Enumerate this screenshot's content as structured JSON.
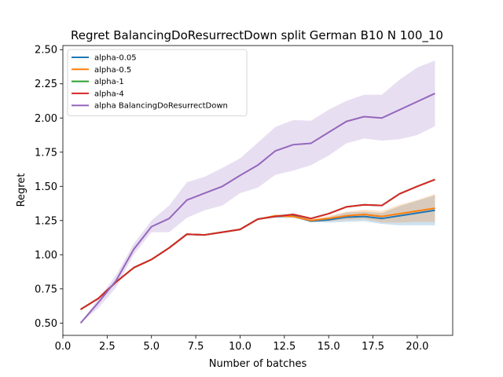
{
  "chart_data": {
    "type": "line",
    "title": "Regret BalancingDoResurrectDown split German B10 N 100_10",
    "xlabel": "Number of batches",
    "ylabel": "Regret",
    "xlim": [
      0.0,
      22.0
    ],
    "ylim": [
      0.41,
      2.53
    ],
    "xticks": [
      0.0,
      2.5,
      5.0,
      7.5,
      10.0,
      12.5,
      15.0,
      17.5,
      20.0
    ],
    "xtick_labels": [
      "0.0",
      "2.5",
      "5.0",
      "7.5",
      "10.0",
      "12.5",
      "15.0",
      "17.5",
      "20.0"
    ],
    "yticks": [
      0.5,
      0.75,
      1.0,
      1.25,
      1.5,
      1.75,
      2.0,
      2.25,
      2.5
    ],
    "ytick_labels": [
      "0.50",
      "0.75",
      "1.00",
      "1.25",
      "1.50",
      "1.75",
      "2.00",
      "2.25",
      "2.50"
    ],
    "grid": false,
    "legend_position": "top-left",
    "x": [
      1,
      2,
      3,
      4,
      5,
      6,
      7,
      8,
      9,
      10,
      11,
      12,
      13,
      14,
      15,
      16,
      17,
      18,
      19,
      20,
      21
    ],
    "series": [
      {
        "name": "alpha-0.05",
        "color": "#1f77b4",
        "values": [
          0.6,
          0.68,
          0.8,
          0.905,
          0.965,
          1.05,
          1.15,
          1.145,
          1.165,
          1.185,
          1.26,
          1.28,
          1.285,
          1.245,
          1.255,
          1.275,
          1.28,
          1.265,
          1.285,
          1.305,
          1.325
        ],
        "lower": [
          0.6,
          0.68,
          0.8,
          0.905,
          0.965,
          1.05,
          1.15,
          1.145,
          1.165,
          1.185,
          1.26,
          1.27,
          1.27,
          1.24,
          1.235,
          1.24,
          1.245,
          1.225,
          1.215,
          1.215,
          1.215
        ],
        "upper": [
          0.6,
          0.68,
          0.8,
          0.905,
          0.965,
          1.05,
          1.15,
          1.145,
          1.165,
          1.185,
          1.26,
          1.29,
          1.3,
          1.255,
          1.275,
          1.31,
          1.315,
          1.305,
          1.355,
          1.395,
          1.435
        ]
      },
      {
        "name": "alpha-0.5",
        "color": "#ff7f0e",
        "values": [
          0.6,
          0.68,
          0.8,
          0.905,
          0.965,
          1.05,
          1.15,
          1.145,
          1.165,
          1.185,
          1.26,
          1.285,
          1.28,
          1.25,
          1.265,
          1.285,
          1.295,
          1.28,
          1.3,
          1.32,
          1.34
        ],
        "lower": [
          0.6,
          0.68,
          0.8,
          0.905,
          0.965,
          1.05,
          1.15,
          1.145,
          1.165,
          1.185,
          1.26,
          1.275,
          1.27,
          1.245,
          1.245,
          1.255,
          1.26,
          1.235,
          1.235,
          1.24,
          1.24
        ],
        "upper": [
          0.6,
          0.68,
          0.8,
          0.905,
          0.965,
          1.05,
          1.15,
          1.145,
          1.165,
          1.185,
          1.26,
          1.295,
          1.29,
          1.26,
          1.285,
          1.315,
          1.33,
          1.32,
          1.365,
          1.4,
          1.445
        ]
      },
      {
        "name": "alpha-1",
        "color": "#2ca02c",
        "values": [
          0.6,
          0.68,
          0.8,
          0.905,
          0.965,
          1.05,
          1.15,
          1.145,
          1.165,
          1.185,
          1.26,
          1.28,
          1.295,
          1.265,
          1.3,
          1.35,
          1.365,
          1.36,
          1.445,
          1.5,
          1.55
        ]
      },
      {
        "name": "alpha-4",
        "color": "#d62728",
        "values": [
          0.6,
          0.68,
          0.8,
          0.905,
          0.965,
          1.05,
          1.15,
          1.145,
          1.165,
          1.185,
          1.26,
          1.28,
          1.295,
          1.265,
          1.3,
          1.35,
          1.365,
          1.36,
          1.445,
          1.5,
          1.55
        ]
      },
      {
        "name": "alpha BalancingDoResurrectDown",
        "color": "#9467bd",
        "values": [
          0.5,
          0.65,
          0.81,
          1.04,
          1.205,
          1.265,
          1.4,
          1.45,
          1.5,
          1.58,
          1.655,
          1.76,
          1.805,
          1.815,
          1.895,
          1.975,
          2.01,
          2.0,
          2.06,
          2.12,
          2.18
        ],
        "lower": [
          0.5,
          0.61,
          0.76,
          1.0,
          1.165,
          1.165,
          1.27,
          1.325,
          1.36,
          1.45,
          1.49,
          1.585,
          1.615,
          1.655,
          1.725,
          1.815,
          1.85,
          1.835,
          1.845,
          1.875,
          1.94
        ],
        "upper": [
          0.5,
          0.68,
          0.85,
          1.08,
          1.25,
          1.36,
          1.53,
          1.57,
          1.635,
          1.705,
          1.82,
          1.935,
          1.985,
          1.98,
          2.06,
          2.125,
          2.17,
          2.17,
          2.28,
          2.37,
          2.42
        ]
      }
    ]
  }
}
